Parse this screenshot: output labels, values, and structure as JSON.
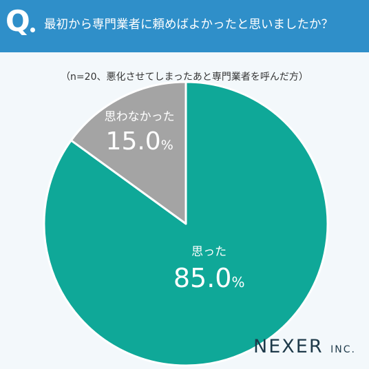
{
  "header": {
    "q_mark": "Q",
    "question": "最初から専門業者に頼めばよかったと思いましたか？"
  },
  "subtitle": "（n=20、悪化させてしまったあと専門業者を呼んだ方）",
  "chart_data": {
    "type": "pie",
    "categories": [
      "思った",
      "思わなかった"
    ],
    "values": [
      85.0,
      15.0
    ],
    "value_labels": [
      "85.0",
      "15.0"
    ],
    "unit": "%",
    "colors": [
      "#0fa898",
      "#a4a4a4"
    ]
  },
  "logo": {
    "main": "NEXER",
    "inc": "INC."
  }
}
